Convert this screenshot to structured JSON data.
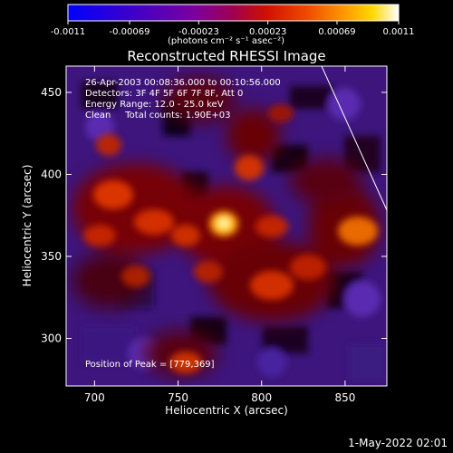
{
  "colorbar": {
    "tick_labels": [
      "-0.0011",
      "-0.00069",
      "-0.00023",
      "0.00023",
      "0.00069",
      "0.0011"
    ],
    "tick_values": [
      -0.0011,
      -0.00069,
      -0.00023,
      0.00023,
      0.00069,
      0.0011
    ],
    "range": [
      -0.0011,
      0.0011
    ],
    "units_label": "(photons cm⁻² s⁻¹ asec⁻²)",
    "colors": [
      "#0000ff",
      "#3c00c8",
      "#7a00a0",
      "#a00060",
      "#cc1800",
      "#f05000",
      "#ff9a00",
      "#ffd000",
      "#ffffff"
    ]
  },
  "title": "Reconstructed RHESSI Image",
  "annotations": {
    "line1": "26-Apr-2003 00:08:36.000 to 00:10:56.000",
    "line2": "Detectors: 3F 4F 5F 6F 7F 8F, Att 0",
    "line3": "Energy Range: 12.0 - 25.0 keV",
    "line4": "Clean     Total counts: 1.90E+03",
    "peak": "Position of Peak = [779,369]"
  },
  "axes": {
    "xlabel": "Heliocentric X (arcsec)",
    "ylabel": "Heliocentric Y (arcsec)",
    "x_ticks": [
      "700",
      "750",
      "800",
      "850"
    ],
    "y_ticks": [
      "300",
      "350",
      "400",
      "450"
    ],
    "x_tick_values": [
      700,
      750,
      800,
      850
    ],
    "y_tick_values": [
      300,
      350,
      400,
      450
    ],
    "xlim": [
      683,
      875
    ],
    "ylim": [
      271,
      466
    ]
  },
  "peak_position": [
    779,
    369
  ],
  "footer": {
    "timestamp": "1-May-2022 02:01"
  }
}
